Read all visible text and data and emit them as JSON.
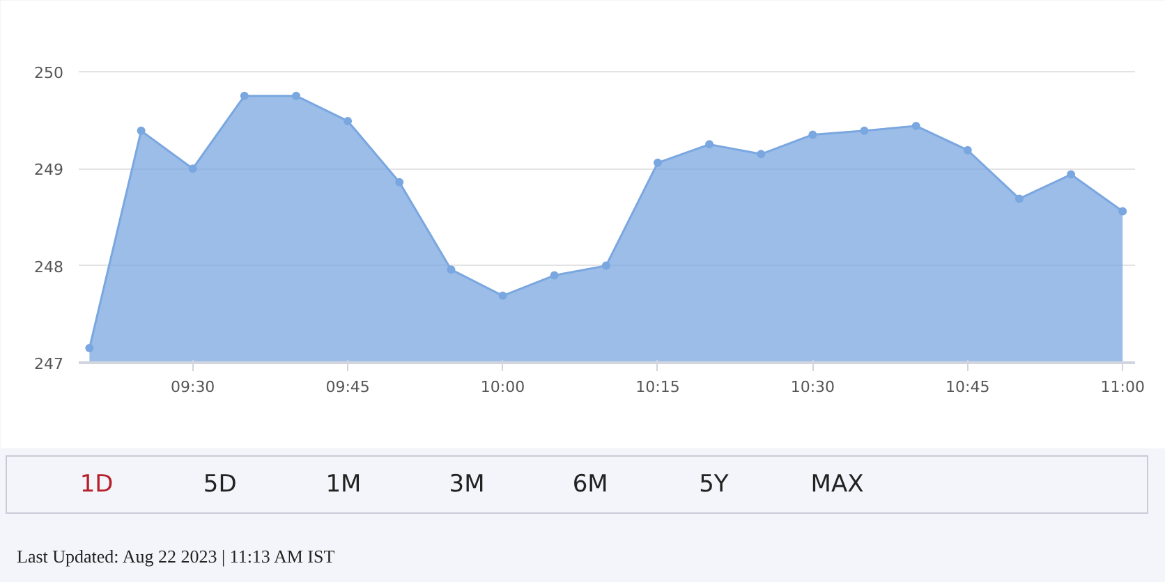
{
  "chart_data": {
    "type": "area",
    "x": [
      9.3333,
      9.4167,
      9.5,
      9.5833,
      9.6667,
      9.75,
      9.8333,
      9.9167,
      10,
      10.0833,
      10.1667,
      10.25,
      10.3333,
      10.4167,
      10.5,
      10.5833,
      10.6667,
      10.75,
      10.8333,
      10.9167,
      11
    ],
    "series": [
      {
        "color": "#7aa7e0",
        "values": [
          247.15,
          249.39,
          249.0,
          249.75,
          249.75,
          249.49,
          248.86,
          247.96,
          247.69,
          247.9,
          248.0,
          249.06,
          249.25,
          249.15,
          249.35,
          249.39,
          249.44,
          249.19,
          248.69,
          248.94,
          248.56
        ]
      }
    ],
    "xlim": [
      9.316,
      11.02
    ],
    "ylim": [
      247,
      250.3
    ],
    "xticks": [
      {
        "value": 9.5,
        "label": "09:30"
      },
      {
        "value": 9.75,
        "label": "09:45"
      },
      {
        "value": 10,
        "label": "10:00"
      },
      {
        "value": 10.25,
        "label": "10:15"
      },
      {
        "value": 10.5,
        "label": "10:30"
      },
      {
        "value": 10.75,
        "label": "10:45"
      },
      {
        "value": 11,
        "label": "11:00"
      }
    ],
    "yticks": [
      247,
      248,
      249,
      250
    ],
    "grid": "y",
    "marker": "circle",
    "annotations": [
      "1D",
      "5D",
      "1M",
      "3M",
      "6M",
      "5Y",
      "MAX",
      "Last Updated: Aug 22 2023 | 11:13 AM IST"
    ]
  }
}
